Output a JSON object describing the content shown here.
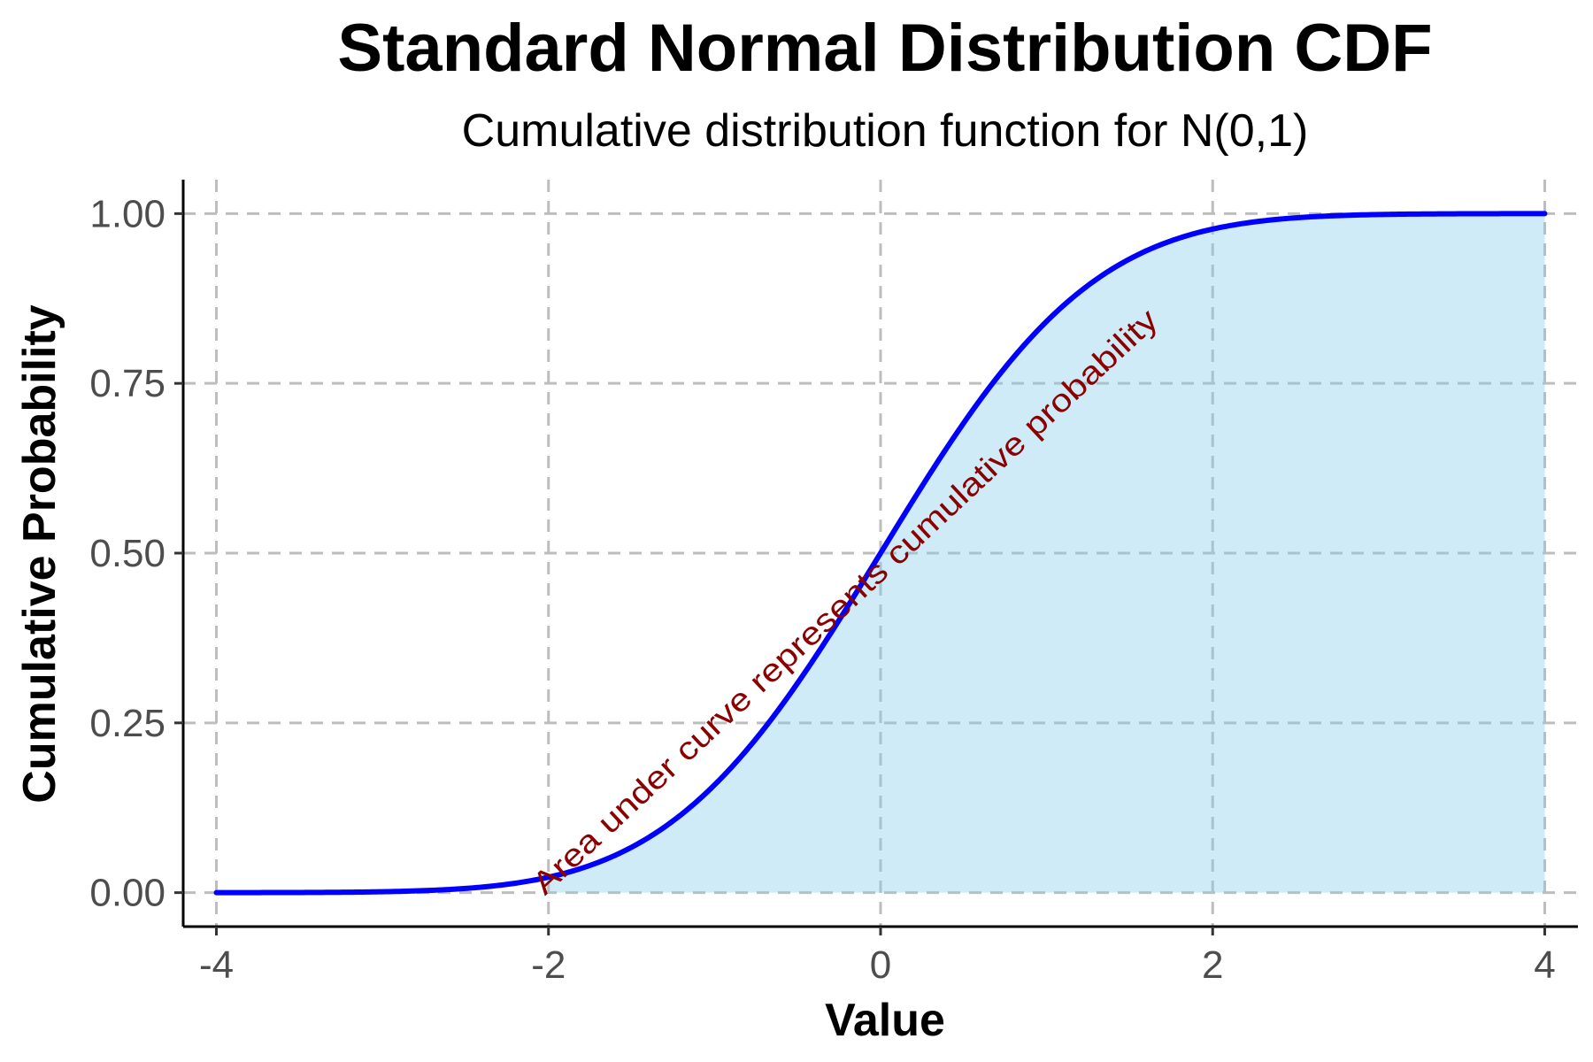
{
  "chart_data": {
    "type": "area",
    "title": "Standard Normal Distribution CDF",
    "subtitle": "Cumulative distribution function for N(0,1)",
    "xlabel": "Value",
    "ylabel": "Cumulative Probability",
    "xlim": [
      -4.2,
      4.2
    ],
    "ylim": [
      -0.05,
      1.05
    ],
    "x_ticks": [
      -4,
      -2,
      0,
      2,
      4
    ],
    "x_tick_labels": [
      "-4",
      "-2",
      "0",
      "2",
      "4"
    ],
    "y_ticks": [
      0,
      0.25,
      0.5,
      0.75,
      1
    ],
    "y_tick_labels": [
      "0.00",
      "0.25",
      "0.50",
      "0.75",
      "1.00"
    ],
    "grid": true,
    "legend": "none",
    "series": [
      {
        "x": [
          -4,
          -3.5,
          -3,
          -2.5,
          -2,
          -1.5,
          -1,
          -0.5,
          0,
          0.5,
          1,
          1.5,
          2,
          2.5,
          3,
          3.5,
          4
        ],
        "values": [
          3e-05,
          0.00023,
          0.00135,
          0.00621,
          0.02275,
          0.06681,
          0.15866,
          0.30854,
          0.5,
          0.69146,
          0.84134,
          0.93319,
          0.97725,
          0.99379,
          0.99865,
          0.99977,
          0.99997
        ],
        "line_color": "#0000ff",
        "fill_color": "#87ceeb"
      }
    ],
    "shaded_region": {
      "from": -2,
      "to": 4
    },
    "annotation": {
      "text": "Area under curve represents cumulative probability",
      "x": -2,
      "y": 0.0,
      "color": "#8b0000"
    }
  }
}
